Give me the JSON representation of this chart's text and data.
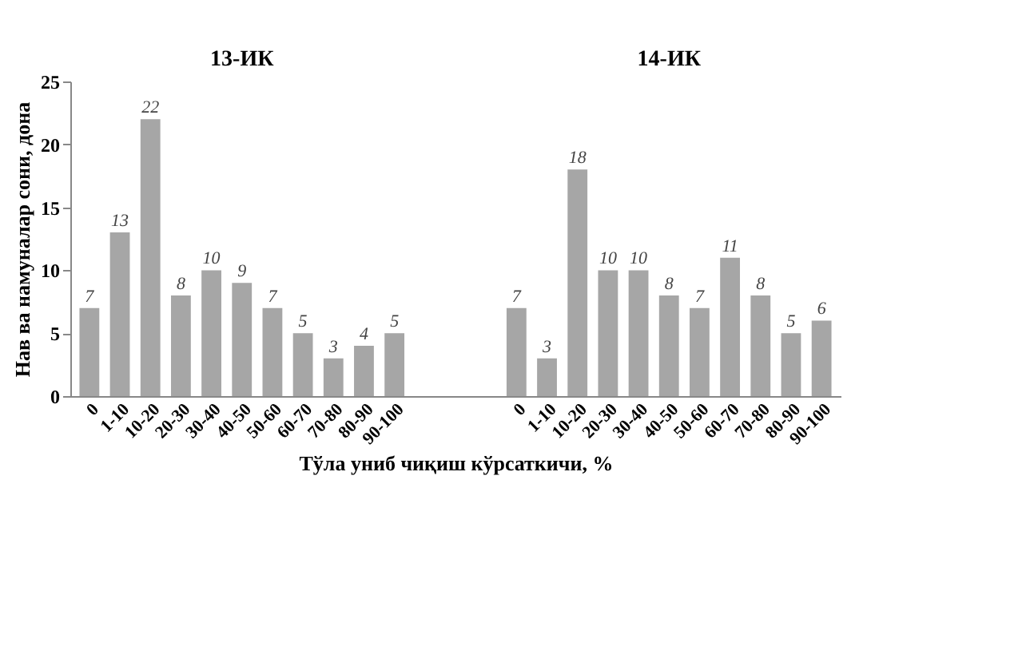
{
  "chart_data": {
    "type": "bar",
    "categories": [
      "0",
      "1-10",
      "10-20",
      "20-30",
      "30-40",
      "40-50",
      "50-60",
      "60-70",
      "70-80",
      "80-90",
      "90-100",
      null,
      null,
      null,
      "0",
      "1-10",
      "10-20",
      "20-30",
      "30-40",
      "40-50",
      "50-60",
      "60-70",
      "70-80",
      "80-90",
      "90-100"
    ],
    "values": [
      7,
      13,
      22,
      8,
      10,
      9,
      7,
      5,
      3,
      4,
      5,
      null,
      null,
      null,
      7,
      3,
      18,
      10,
      10,
      8,
      7,
      11,
      8,
      5,
      6
    ],
    "color": "#a6a6a6",
    "data_labels": true,
    "ylim": [
      0,
      25
    ],
    "yticks": [
      0,
      5,
      10,
      15,
      20,
      25
    ],
    "grid": false,
    "xlabel": "Тўла униб чиқиш кўрсаткичи, %",
    "ylabel": "Нав ва намуналар сони, дона",
    "annotations": [
      "13-ИК",
      "14-ИК"
    ]
  }
}
